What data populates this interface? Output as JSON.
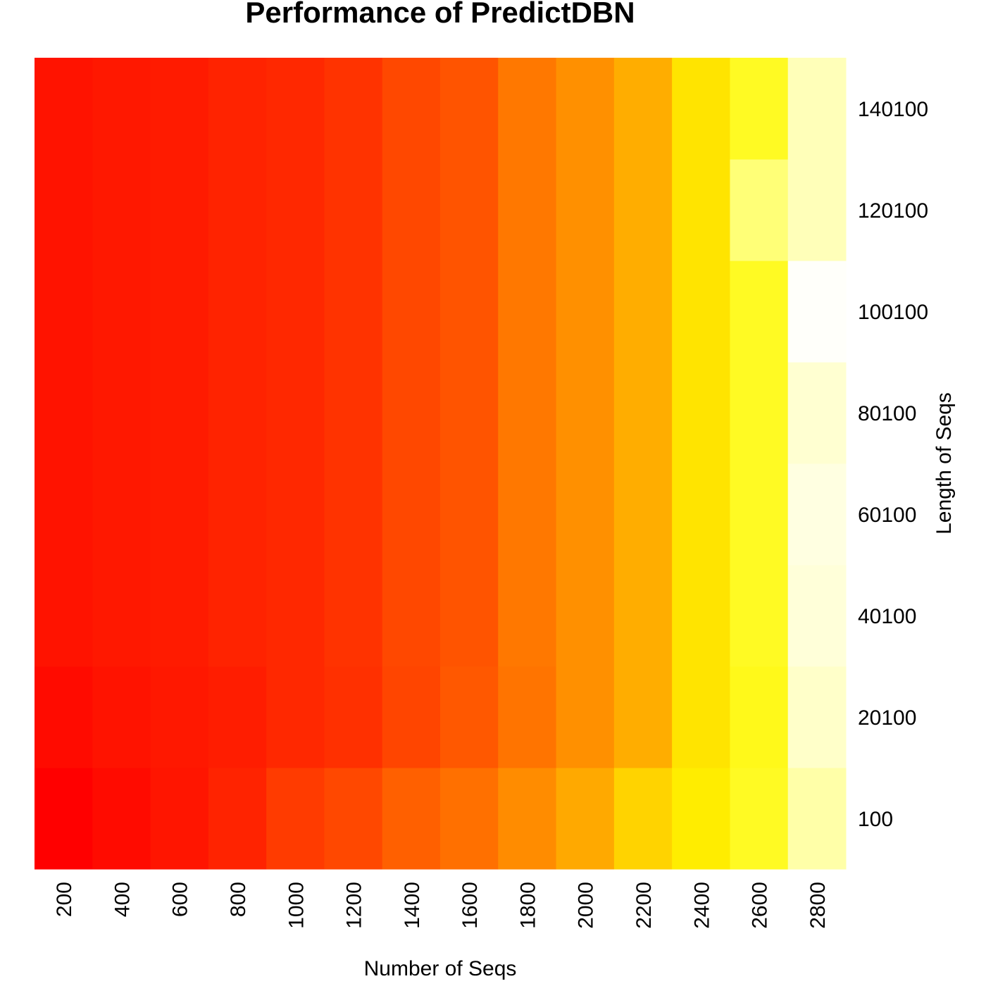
{
  "chart_data": {
    "type": "heatmap",
    "title": "Performance of PredictDBN",
    "xlabel": "Number of Seqs",
    "ylabel": "Length of Seqs",
    "x": [
      "200",
      "400",
      "600",
      "800",
      "1000",
      "1200",
      "1400",
      "1600",
      "1800",
      "2000",
      "2200",
      "2400",
      "2600",
      "2800"
    ],
    "y": [
      "100",
      "20100",
      "40100",
      "60100",
      "80100",
      "100100",
      "120100",
      "140100"
    ],
    "color_scale": "heat",
    "colors": {
      "low": "#ff0000",
      "high": "#ffffff"
    },
    "values": [
      [
        0.0,
        0.04,
        0.08,
        0.13,
        0.22,
        0.27,
        0.34,
        0.38,
        0.45,
        0.52,
        0.62,
        0.68,
        0.74,
        0.9
      ],
      [
        0.04,
        0.07,
        0.09,
        0.11,
        0.15,
        0.18,
        0.26,
        0.32,
        0.39,
        0.46,
        0.53,
        0.66,
        0.73,
        0.94
      ],
      [
        0.07,
        0.09,
        0.1,
        0.13,
        0.15,
        0.19,
        0.27,
        0.31,
        0.4,
        0.46,
        0.53,
        0.66,
        0.74,
        0.96
      ],
      [
        0.07,
        0.09,
        0.1,
        0.13,
        0.15,
        0.19,
        0.27,
        0.31,
        0.4,
        0.46,
        0.53,
        0.66,
        0.74,
        0.97
      ],
      [
        0.07,
        0.09,
        0.1,
        0.13,
        0.15,
        0.19,
        0.27,
        0.31,
        0.4,
        0.46,
        0.53,
        0.66,
        0.74,
        0.95
      ],
      [
        0.07,
        0.09,
        0.1,
        0.13,
        0.15,
        0.19,
        0.27,
        0.31,
        0.4,
        0.46,
        0.53,
        0.66,
        0.74,
        1.0
      ],
      [
        0.07,
        0.09,
        0.1,
        0.13,
        0.15,
        0.19,
        0.27,
        0.31,
        0.4,
        0.46,
        0.53,
        0.66,
        0.84,
        0.92
      ],
      [
        0.07,
        0.09,
        0.1,
        0.13,
        0.15,
        0.19,
        0.27,
        0.31,
        0.4,
        0.46,
        0.53,
        0.66,
        0.74,
        0.92
      ]
    ],
    "legend": "none",
    "grid": false
  }
}
